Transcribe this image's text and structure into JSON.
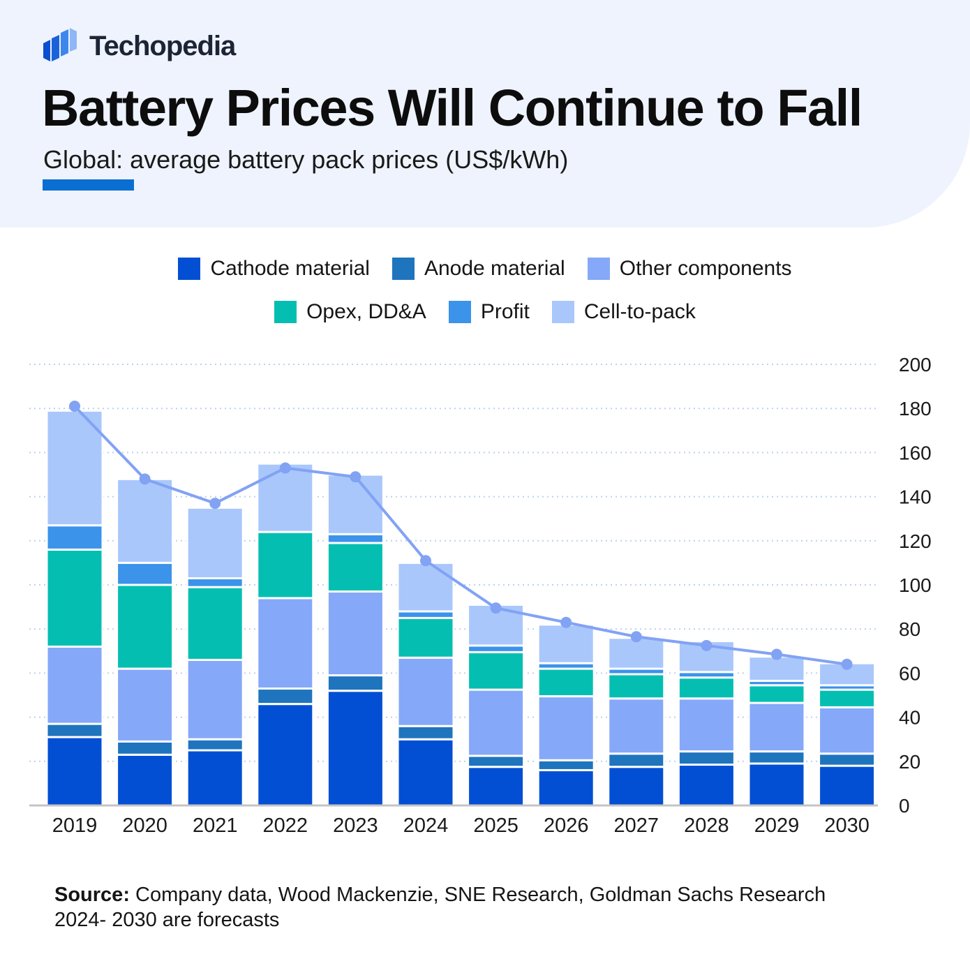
{
  "brand": {
    "name": "Techopedia"
  },
  "title": "Battery Prices Will Continue to Fall",
  "subtitle": "Global: average battery pack prices (US$/kWh)",
  "colors": {
    "cathode": "#034fd4",
    "anode": "#1f74be",
    "other": "#86a8f9",
    "opex": "#04bfb1",
    "profit": "#3b93ea",
    "cell_to_pack": "#a9c7fb",
    "line": "#82a2f4",
    "accent": "#0b6fd1"
  },
  "legend": [
    {
      "key": "cathode",
      "label": "Cathode material"
    },
    {
      "key": "anode",
      "label": "Anode material"
    },
    {
      "key": "other",
      "label": "Other components"
    },
    {
      "key": "opex",
      "label": "Opex, DD&A"
    },
    {
      "key": "profit",
      "label": "Profit"
    },
    {
      "key": "cell_to_pack",
      "label": "Cell-to-pack"
    }
  ],
  "chart_data": {
    "type": "bar",
    "stacked": true,
    "title": "Battery Prices Will Continue to Fall",
    "ylabel": "US$/kWh",
    "ylim": [
      0,
      200
    ],
    "yticks": [
      0,
      20,
      40,
      60,
      80,
      100,
      120,
      140,
      160,
      180,
      200
    ],
    "y_axis_side": "right",
    "grid": true,
    "categories": [
      "2019",
      "2020",
      "2021",
      "2022",
      "2023",
      "2024",
      "2025",
      "2026",
      "2027",
      "2028",
      "2029",
      "2030"
    ],
    "series": [
      {
        "key": "cathode",
        "name": "Cathode material",
        "values": [
          31,
          23,
          25,
          46,
          52,
          30,
          17.5,
          16,
          17.5,
          18.5,
          19,
          18
        ]
      },
      {
        "key": "anode",
        "name": "Anode material",
        "values": [
          6,
          6,
          5,
          7,
          7,
          6,
          5,
          4.5,
          6,
          6,
          5.5,
          5.5
        ]
      },
      {
        "key": "other",
        "name": "Other components",
        "values": [
          35,
          33,
          36,
          41,
          38,
          31,
          30,
          29,
          25,
          24,
          22,
          21
        ]
      },
      {
        "key": "opex",
        "name": "Opex, DD&A",
        "values": [
          44,
          38,
          33,
          30,
          22,
          18,
          17,
          12.5,
          11,
          9.5,
          8,
          8
        ]
      },
      {
        "key": "profit",
        "name": "Profit",
        "values": [
          11,
          10,
          4,
          0,
          4,
          3,
          3,
          2.5,
          2.5,
          2.5,
          2,
          2
        ]
      },
      {
        "key": "cell_to_pack",
        "name": "Cell-to-pack",
        "values": [
          52,
          38,
          32,
          31,
          27,
          22,
          18.5,
          17.5,
          14,
          14,
          11,
          10
        ]
      }
    ],
    "line": {
      "name": "Average pack price",
      "values": [
        181,
        148,
        137,
        153,
        149,
        111,
        89.5,
        83,
        76.5,
        72.5,
        68.5,
        64
      ]
    }
  },
  "source": {
    "label": "Source:",
    "text": "Company data, Wood Mackenzie, SNE Research, Goldman Sachs Research",
    "note": "2024- 2030 are forecasts"
  }
}
